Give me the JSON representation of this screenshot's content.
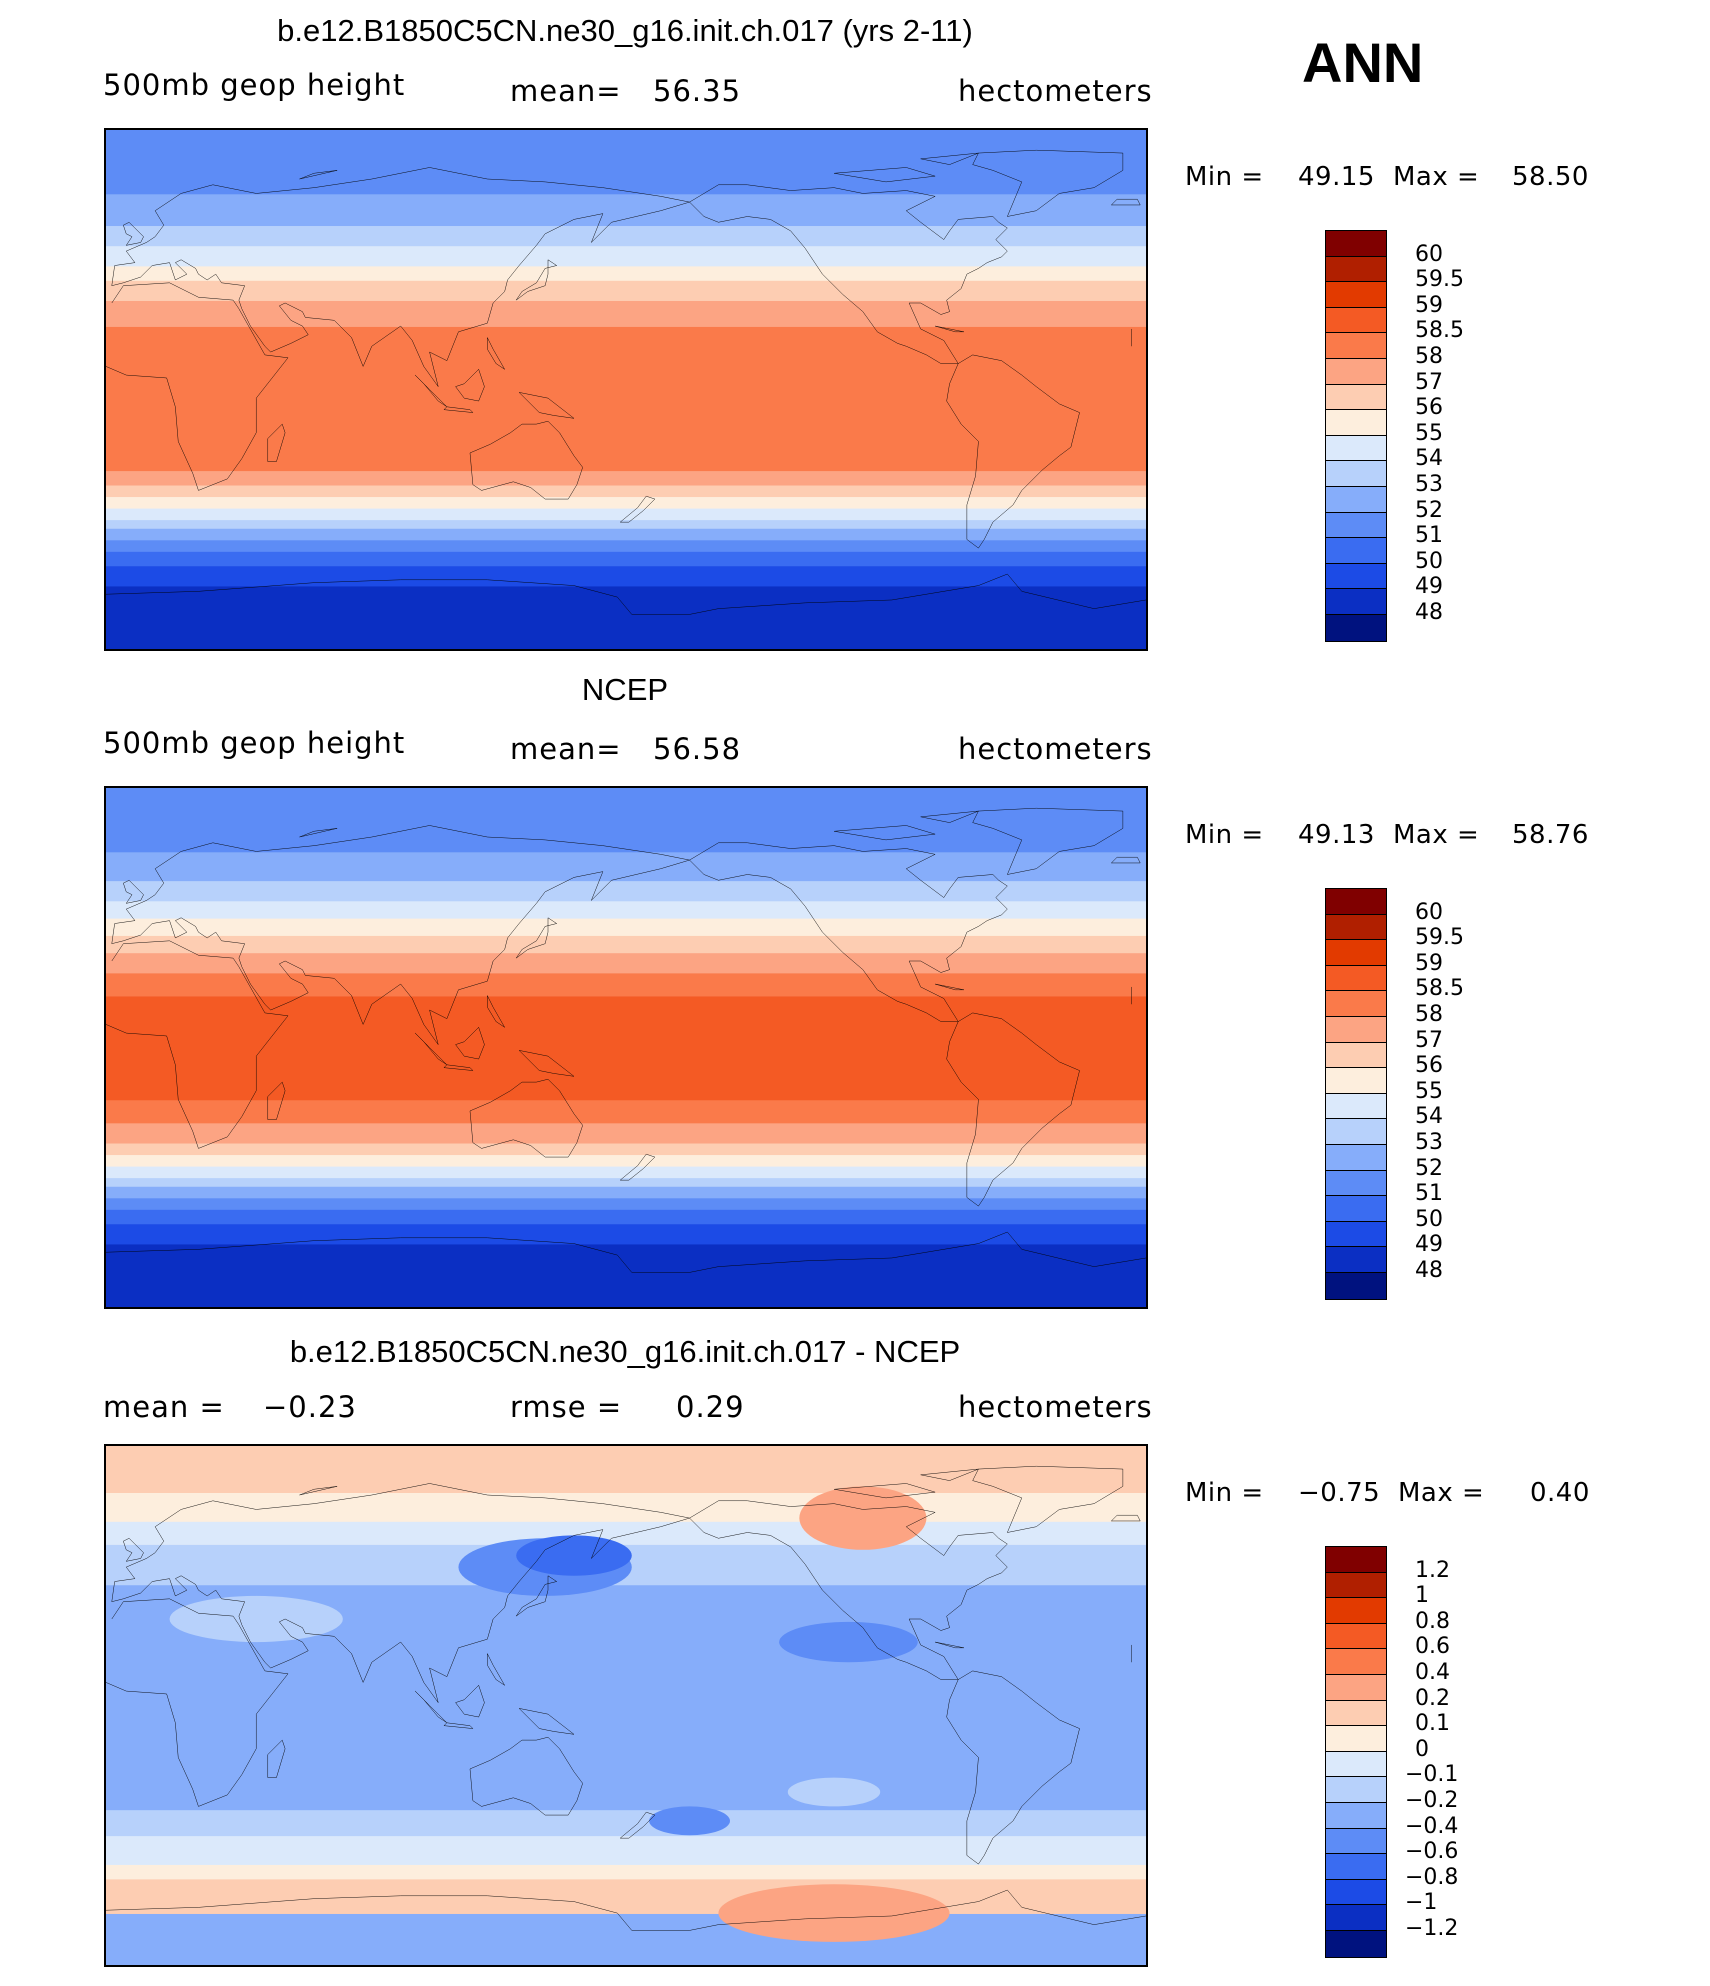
{
  "season": "ANN",
  "panels": [
    {
      "title": "b.e12.B1850C5CN.ne30_g16.init.ch.017 (yrs 2-11)",
      "left_label": "500mb geop height",
      "mean_label": "mean=",
      "mean_value": "56.35",
      "units": "hectometers",
      "min_label": "Min =",
      "min_value": "49.15",
      "max_label": "Max =",
      "max_value": "58.50",
      "colorbar_ticks": [
        "60",
        "59.5",
        "59",
        "58.5",
        "58",
        "57",
        "56",
        "55",
        "54",
        "53",
        "52",
        "51",
        "50",
        "49",
        "48"
      ],
      "colorbar_colors": [
        "#800000",
        "#b01f00",
        "#e23a00",
        "#f45a24",
        "#fa7a4a",
        "#fca483",
        "#fdcdb2",
        "#fdeedd",
        "#dbe9fb",
        "#b7d1fb",
        "#86adfa",
        "#5d8cf6",
        "#3a6cf1",
        "#1c4be6",
        "#0b2fc3",
        "#00127f"
      ],
      "bands": [
        {
          "lat": -90,
          "color": "#0b2fc3"
        },
        {
          "lat": -68,
          "color": "#1c4be6"
        },
        {
          "lat": -61,
          "color": "#3a6cf1"
        },
        {
          "lat": -56,
          "color": "#5d8cf6"
        },
        {
          "lat": -52,
          "color": "#86adfa"
        },
        {
          "lat": -48,
          "color": "#b7d1fb"
        },
        {
          "lat": -45,
          "color": "#dbe9fb"
        },
        {
          "lat": -41,
          "color": "#fdeedd"
        },
        {
          "lat": -37,
          "color": "#fdcdb2"
        },
        {
          "lat": -33,
          "color": "#fca483"
        },
        {
          "lat": -28,
          "color": "#fa7a4a"
        },
        {
          "lat": 22,
          "color": "#fca483"
        },
        {
          "lat": 31,
          "color": "#fdcdb2"
        },
        {
          "lat": 38,
          "color": "#fdeedd"
        },
        {
          "lat": 43,
          "color": "#dbe9fb"
        },
        {
          "lat": 50,
          "color": "#b7d1fb"
        },
        {
          "lat": 57,
          "color": "#86adfa"
        },
        {
          "lat": 68,
          "color": "#5d8cf6"
        }
      ]
    },
    {
      "title": "NCEP",
      "left_label": "500mb geop height",
      "mean_label": "mean=",
      "mean_value": "56.58",
      "units": "hectometers",
      "min_label": "Min =",
      "min_value": "49.13",
      "max_label": "Max =",
      "max_value": "58.76",
      "colorbar_ticks": [
        "60",
        "59.5",
        "59",
        "58.5",
        "58",
        "57",
        "56",
        "55",
        "54",
        "53",
        "52",
        "51",
        "50",
        "49",
        "48"
      ],
      "colorbar_colors": [
        "#800000",
        "#b01f00",
        "#e23a00",
        "#f45a24",
        "#fa7a4a",
        "#fca483",
        "#fdcdb2",
        "#fdeedd",
        "#dbe9fb",
        "#b7d1fb",
        "#86adfa",
        "#5d8cf6",
        "#3a6cf1",
        "#1c4be6",
        "#0b2fc3",
        "#00127f"
      ],
      "bands": [
        {
          "lat": -90,
          "color": "#0b2fc3"
        },
        {
          "lat": -68,
          "color": "#1c4be6"
        },
        {
          "lat": -61,
          "color": "#3a6cf1"
        },
        {
          "lat": -56,
          "color": "#5d8cf6"
        },
        {
          "lat": -52,
          "color": "#86adfa"
        },
        {
          "lat": -48,
          "color": "#b7d1fb"
        },
        {
          "lat": -45,
          "color": "#dbe9fb"
        },
        {
          "lat": -41,
          "color": "#fdeedd"
        },
        {
          "lat": -37,
          "color": "#fdcdb2"
        },
        {
          "lat": -33,
          "color": "#fca483"
        },
        {
          "lat": -26,
          "color": "#fa7a4a"
        },
        {
          "lat": -18,
          "color": "#f45a24"
        },
        {
          "lat": 18,
          "color": "#fa7a4a"
        },
        {
          "lat": 26,
          "color": "#fca483"
        },
        {
          "lat": 33,
          "color": "#fdcdb2"
        },
        {
          "lat": 39,
          "color": "#fdeedd"
        },
        {
          "lat": 45,
          "color": "#dbe9fb"
        },
        {
          "lat": 51,
          "color": "#b7d1fb"
        },
        {
          "lat": 58,
          "color": "#86adfa"
        },
        {
          "lat": 68,
          "color": "#5d8cf6"
        }
      ]
    },
    {
      "title": "b.e12.B1850C5CN.ne30_g16.init.ch.017 - NCEP",
      "left_label": "mean =",
      "left_value": "−0.23",
      "mean_label": "rmse =",
      "mean_value": "0.29",
      "units": "hectometers",
      "min_label": "Min =",
      "min_value": "−0.75",
      "max_label": "Max =",
      "max_value": "0.40",
      "colorbar_ticks": [
        "1.2",
        "1",
        "0.8",
        "0.6",
        "0.4",
        "0.2",
        "0.1",
        "0",
        "−0.1",
        "−0.2",
        "−0.4",
        "−0.6",
        "−0.8",
        "−1",
        "−1.2"
      ],
      "colorbar_colors": [
        "#800000",
        "#b01f00",
        "#e23a00",
        "#f45a24",
        "#fa7a4a",
        "#fca483",
        "#fdcdb2",
        "#fdeedd",
        "#dbe9fb",
        "#b7d1fb",
        "#86adfa",
        "#5d8cf6",
        "#3a6cf1",
        "#1c4be6",
        "#0b2fc3",
        "#00127f"
      ],
      "bands": [
        {
          "lat": -90,
          "color": "#86adfa"
        },
        {
          "lat": -72,
          "color": "#fdcdb2"
        },
        {
          "lat": -60,
          "color": "#fdeedd"
        },
        {
          "lat": -55,
          "color": "#dbe9fb"
        },
        {
          "lat": -45,
          "color": "#b7d1fb"
        },
        {
          "lat": -36,
          "color": "#86adfa"
        },
        {
          "lat": 42,
          "color": "#b7d1fb"
        },
        {
          "lat": 56,
          "color": "#dbe9fb"
        },
        {
          "lat": 64,
          "color": "#fdeedd"
        },
        {
          "lat": 74,
          "color": "#fdcdb2"
        }
      ],
      "blobs": [
        {
          "lon": 140,
          "lat": 48,
          "rlon": 30,
          "rlat": 10,
          "color": "#5d8cf6"
        },
        {
          "lon": 150,
          "lat": 52,
          "rlon": 20,
          "rlat": 7,
          "color": "#3a6cf1"
        },
        {
          "lon": 250,
          "lat": 65,
          "rlon": 22,
          "rlat": 11,
          "color": "#fca483"
        },
        {
          "lon": 245,
          "lat": 22,
          "rlon": 24,
          "rlat": 7,
          "color": "#5d8cf6"
        },
        {
          "lon": 190,
          "lat": -40,
          "rlon": 14,
          "rlat": 5,
          "color": "#5d8cf6"
        },
        {
          "lon": 240,
          "lat": -30,
          "rlon": 16,
          "rlat": 5,
          "color": "#b7d1fb"
        },
        {
          "lon": 240,
          "lat": -72,
          "rlon": 40,
          "rlat": 10,
          "color": "#fca483"
        },
        {
          "lon": 40,
          "lat": 30,
          "rlon": 30,
          "rlat": 8,
          "color": "#b7d1fb"
        }
      ]
    }
  ],
  "continent_outline_color": "#000000"
}
